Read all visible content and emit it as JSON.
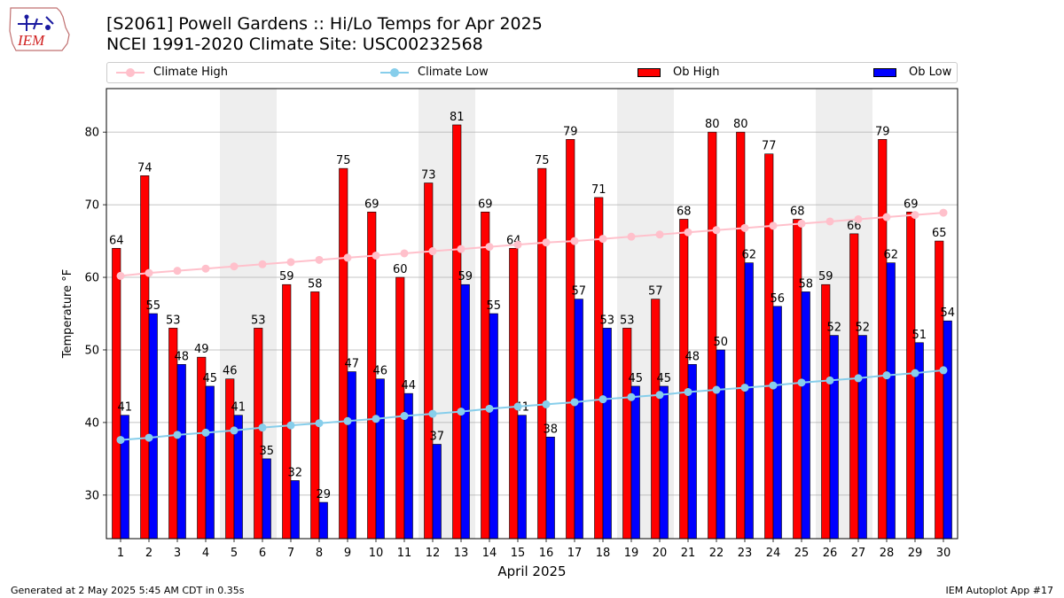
{
  "header": {
    "title_line1": "[S2061] Powell Gardens :: Hi/Lo Temps for Apr 2025",
    "title_line2": "NCEI 1991-2020 Climate Site: USC00232568",
    "logo_text": "IEM"
  },
  "legend": {
    "climate_high": "Climate High",
    "climate_low": "Climate Low",
    "ob_high": "Ob High",
    "ob_low": "Ob Low"
  },
  "footer": {
    "generated": "Generated at 2 May 2025 5:45 AM CDT in 0.35s",
    "app": "IEM Autoplot App #17"
  },
  "colors": {
    "ob_high": "#ff0000",
    "ob_low": "#0000ff",
    "climate_high": "#ffc0cb",
    "climate_low": "#87ceeb",
    "weekend_band": "#eeeeee",
    "grid": "#b0b0b0"
  },
  "chart_data": {
    "type": "bar",
    "xlabel": "April 2025",
    "ylabel": "Temperature °F",
    "ylim": [
      24,
      86
    ],
    "yticks": [
      30,
      40,
      50,
      60,
      70,
      80
    ],
    "grid": "horizontal",
    "legend_position": "top",
    "categories": [
      1,
      2,
      3,
      4,
      5,
      6,
      7,
      8,
      9,
      10,
      11,
      12,
      13,
      14,
      15,
      16,
      17,
      18,
      19,
      20,
      21,
      22,
      23,
      24,
      25,
      26,
      27,
      28,
      29,
      30
    ],
    "shaded_days": [
      5,
      6,
      12,
      13,
      19,
      20,
      26,
      27
    ],
    "series": [
      {
        "name": "Ob High",
        "kind": "bar",
        "values": [
          64,
          74,
          53,
          49,
          46,
          53,
          59,
          58,
          75,
          69,
          60,
          73,
          81,
          69,
          64,
          75,
          79,
          71,
          53,
          57,
          68,
          80,
          80,
          77,
          68,
          59,
          66,
          79,
          69,
          65
        ]
      },
      {
        "name": "Ob Low",
        "kind": "bar",
        "values": [
          41,
          55,
          48,
          45,
          41,
          35,
          32,
          29,
          47,
          46,
          44,
          37,
          59,
          55,
          41,
          38,
          57,
          53,
          45,
          45,
          48,
          50,
          62,
          56,
          58,
          52,
          52,
          62,
          51,
          54
        ]
      },
      {
        "name": "Climate High",
        "kind": "line",
        "values": [
          60.2,
          60.6,
          60.9,
          61.2,
          61.5,
          61.8,
          62.1,
          62.4,
          62.7,
          63.0,
          63.3,
          63.6,
          63.9,
          64.2,
          64.5,
          64.8,
          65.0,
          65.3,
          65.6,
          65.9,
          66.2,
          66.5,
          66.8,
          67.1,
          67.4,
          67.7,
          68.0,
          68.3,
          68.6,
          68.9
        ]
      },
      {
        "name": "Climate Low",
        "kind": "line",
        "values": [
          37.6,
          37.9,
          38.3,
          38.6,
          38.9,
          39.3,
          39.6,
          39.9,
          40.2,
          40.5,
          40.9,
          41.2,
          41.5,
          41.9,
          42.2,
          42.5,
          42.8,
          43.2,
          43.5,
          43.8,
          44.2,
          44.5,
          44.8,
          45.1,
          45.5,
          45.8,
          46.1,
          46.5,
          46.8,
          47.2
        ]
      }
    ]
  }
}
